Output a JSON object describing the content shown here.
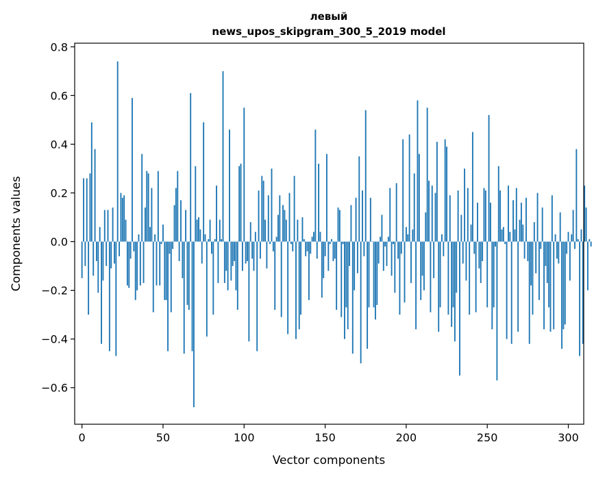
{
  "chart_data": {
    "type": "bar",
    "title": "левый",
    "subtitle": "news_upos_skipgram_300_5_2019 model",
    "xlabel": "Vector components",
    "ylabel": "Components values",
    "xlim": [
      -4.5,
      309.5
    ],
    "ylim": [
      -0.75,
      0.815
    ],
    "xticks": [
      0,
      50,
      100,
      150,
      200,
      250,
      300
    ],
    "yticks": [
      -0.6,
      -0.4,
      -0.2,
      0.0,
      0.2,
      0.4,
      0.6,
      0.8
    ],
    "xtick_labels": [
      "0",
      "50",
      "100",
      "150",
      "200",
      "250",
      "300"
    ],
    "ytick_labels": [
      "−0.6",
      "−0.4",
      "−0.2",
      "0.0",
      "0.2",
      "0.4",
      "0.6",
      "0.8"
    ],
    "grid": false,
    "bar_color": "#1f77b4",
    "series": [
      {
        "values": [
          -0.15,
          0.26,
          -0.1,
          0.26,
          -0.3,
          0.28,
          0.49,
          -0.14,
          0.38,
          -0.08,
          -0.21,
          0.06,
          -0.42,
          -0.16,
          0.13,
          -0.1,
          0.13,
          -0.45,
          -0.11,
          0.14,
          -0.09,
          -0.47,
          0.74,
          -0.06,
          0.2,
          0.18,
          0.19,
          0.09,
          -0.18,
          -0.19,
          -0.07,
          0.59,
          -0.04,
          -0.24,
          -0.2,
          0.03,
          -0.18,
          0.36,
          -0.17,
          0.14,
          0.29,
          0.28,
          0.06,
          0.22,
          -0.29,
          0.03,
          -0.18,
          0.29,
          -0.18,
          -0.01,
          0.07,
          -0.24,
          -0.24,
          -0.45,
          -0.05,
          -0.29,
          -0.03,
          0.15,
          0.22,
          0.29,
          -0.08,
          0.17,
          -0.15,
          -0.46,
          0.13,
          -0.26,
          -0.28,
          0.61,
          -0.45,
          -0.68,
          0.31,
          0.09,
          0.1,
          0.05,
          -0.09,
          0.49,
          0.03,
          -0.39,
          0.01,
          0.09,
          -0.05,
          -0.3,
          0.01,
          0.23,
          -0.17,
          0.09,
          0.01,
          0.7,
          -0.17,
          -0.12,
          -0.2,
          0.46,
          -0.16,
          -0.1,
          -0.08,
          -0.2,
          -0.28,
          0.31,
          0.32,
          -0.12,
          0.55,
          -0.09,
          -0.08,
          -0.41,
          0.08,
          -0.07,
          -0.12,
          0.04,
          -0.45,
          0.21,
          -0.07,
          0.27,
          0.25,
          0.09,
          -0.11,
          0.19,
          -0.01,
          0.3,
          -0.04,
          -0.28,
          0.02,
          0.11,
          0.19,
          -0.31,
          0.15,
          0.13,
          0.09,
          -0.38,
          0.2,
          -0.01,
          -0.04,
          0.27,
          -0.4,
          0.09,
          -0.36,
          -0.3,
          0.1,
          0.01,
          -0.06,
          -0.04,
          -0.24,
          -0.05,
          0.02,
          0.04,
          0.46,
          -0.07,
          0.32,
          0.04,
          -0.23,
          -0.15,
          -0.06,
          0.36,
          -0.12,
          -0.01,
          0.01,
          -0.08,
          -0.07,
          -0.28,
          0.14,
          0.13,
          -0.31,
          -0.01,
          -0.4,
          -0.27,
          -0.36,
          -0.1,
          0.15,
          -0.46,
          -0.2,
          0.18,
          -0.13,
          0.35,
          -0.5,
          0.21,
          -0.06,
          0.54,
          -0.44,
          -0.27,
          0.18,
          0.0,
          -0.27,
          -0.32,
          -0.26,
          -0.09,
          0.02,
          0.11,
          -0.12,
          -0.02,
          -0.1,
          0.02,
          0.22,
          -0.14,
          -0.01,
          -0.21,
          0.24,
          -0.07,
          -0.3,
          -0.05,
          0.42,
          -0.25,
          0.06,
          0.03,
          0.44,
          -0.17,
          0.05,
          0.28,
          -0.36,
          0.58,
          0.36,
          -0.24,
          -0.14,
          -0.2,
          0.12,
          0.55,
          0.25,
          -0.29,
          0.23,
          -0.15,
          0.2,
          0.41,
          -0.37,
          -0.27,
          0.03,
          -0.06,
          0.42,
          0.39,
          -0.3,
          0.19,
          -0.35,
          -0.27,
          -0.41,
          -0.21,
          0.21,
          -0.55,
          0.11,
          -0.09,
          0.3,
          -0.16,
          0.22,
          -0.3,
          0.07,
          0.45,
          -0.05,
          -0.29,
          0.16,
          -0.11,
          -0.17,
          -0.08,
          0.22,
          0.21,
          -0.27,
          0.52,
          0.16,
          -0.36,
          -0.27,
          -0.02,
          -0.57,
          0.31,
          0.21,
          0.05,
          0.06,
          -0.01,
          -0.4,
          0.23,
          0.04,
          -0.42,
          0.17,
          0.05,
          0.22,
          -0.37,
          0.09,
          0.16,
          0.07,
          -0.07,
          0.18,
          -0.08,
          -0.42,
          -0.18,
          -0.3,
          0.08,
          -0.13,
          0.2,
          -0.24,
          -0.03,
          0.14,
          -0.36,
          -0.1,
          -0.17,
          -0.27,
          -0.37,
          0.19,
          -0.36,
          0.03,
          -0.07,
          -0.09,
          0.12,
          -0.44,
          -0.36,
          -0.34,
          -0.05,
          0.04,
          -0.16,
          0.03,
          0.13,
          -0.03,
          0.38,
          0.01,
          -0.47,
          0.05,
          -0.42,
          0.23,
          0.14,
          -0.2,
          0.01,
          -0.02
        ]
      }
    ]
  }
}
